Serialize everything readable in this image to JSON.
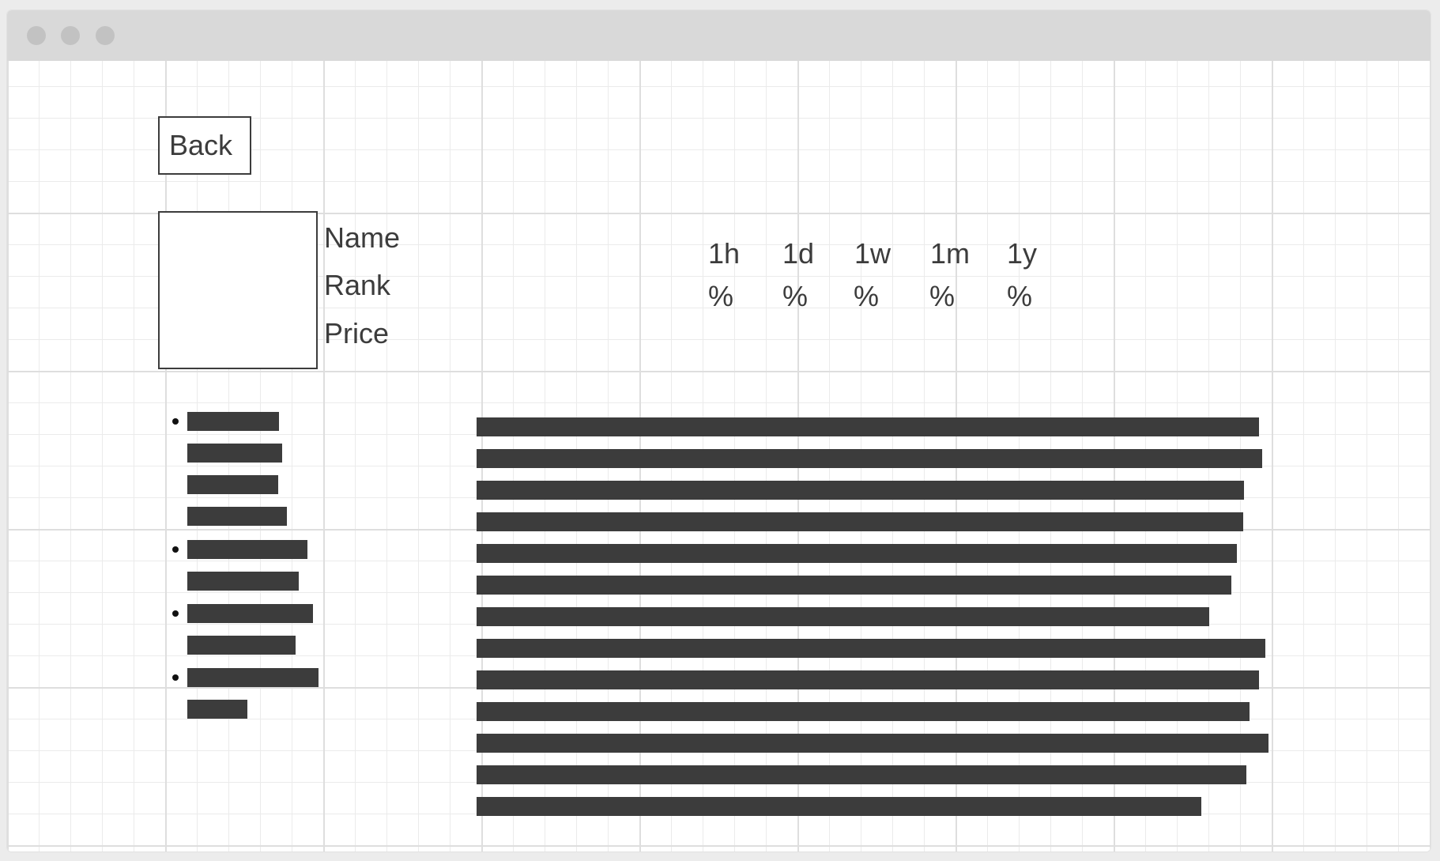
{
  "back_button": {
    "label": "Back"
  },
  "profile": {
    "name_label": "Name",
    "rank_label": "Rank",
    "price_label": "Price"
  },
  "periods": [
    {
      "label": "1h",
      "value": "%"
    },
    {
      "label": "1d",
      "value": "%"
    },
    {
      "label": "1w",
      "value": "%"
    },
    {
      "label": "1m",
      "value": "%"
    },
    {
      "label": "1y",
      "value": "%"
    }
  ],
  "colors": {
    "ink": "#3c3c3c",
    "titlebar": "#d9d9d9",
    "window_dot": "#c2c2c2",
    "grid_minor": "#ebebeb",
    "grid_major": "#dedede"
  },
  "icons": {
    "window_controls": [
      "window-close-dot-icon",
      "window-minimize-dot-icon",
      "window-maximize-dot-icon"
    ],
    "list_bullet": "bullet-dot-icon"
  }
}
